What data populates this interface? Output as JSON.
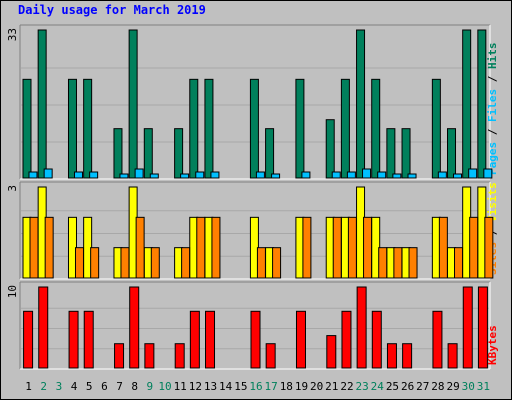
{
  "title": "Daily usage for March 2019",
  "colors": {
    "hits": "#00805c",
    "files": "#00c0ff",
    "pages": "#00c0ff",
    "visits": "#ffff00",
    "sites": "#ff8000",
    "kbytes": "#ff0000",
    "weekday_label": "#000000",
    "weekend_label": "#00805c"
  },
  "chart_data": [
    {
      "type": "bar",
      "title": "Daily usage for March 2019",
      "categories": [
        "1",
        "2",
        "3",
        "4",
        "5",
        "6",
        "7",
        "8",
        "9",
        "10",
        "11",
        "12",
        "13",
        "14",
        "15",
        "16",
        "17",
        "18",
        "19",
        "20",
        "21",
        "22",
        "23",
        "24",
        "25",
        "26",
        "27",
        "28",
        "29",
        "30",
        "31"
      ],
      "weekend_days": [
        "2",
        "3",
        "9",
        "10",
        "16",
        "17",
        "23",
        "24",
        "30",
        "31"
      ],
      "ymax_label": "33",
      "ylim": [
        0,
        33
      ],
      "legend": [
        {
          "text": "Pages",
          "color": "#00c0ff"
        },
        {
          "text": " / ",
          "color": "#000000"
        },
        {
          "text": "Files",
          "color": "#00c0ff"
        },
        {
          "text": " / ",
          "color": "#000000"
        },
        {
          "text": "Hits",
          "color": "#00805c"
        }
      ],
      "series": [
        {
          "name": "Hits",
          "color": "#00805c",
          "values": [
            22,
            33,
            0,
            22,
            22,
            0,
            11,
            33,
            11,
            0,
            11,
            22,
            22,
            0,
            0,
            22,
            11,
            0,
            22,
            0,
            13,
            22,
            33,
            22,
            11,
            11,
            0,
            22,
            11,
            33,
            33
          ]
        },
        {
          "name": "Files",
          "color": "#00c0ff",
          "values": [
            2,
            3,
            0,
            2,
            2,
            0,
            1,
            3,
            1,
            0,
            1,
            2,
            2,
            0,
            0,
            2,
            1,
            0,
            2,
            0,
            2,
            2,
            3,
            2,
            1,
            1,
            0,
            2,
            1,
            3,
            3
          ]
        }
      ]
    },
    {
      "type": "bar",
      "categories": [
        "1",
        "2",
        "3",
        "4",
        "5",
        "6",
        "7",
        "8",
        "9",
        "10",
        "11",
        "12",
        "13",
        "14",
        "15",
        "16",
        "17",
        "18",
        "19",
        "20",
        "21",
        "22",
        "23",
        "24",
        "25",
        "26",
        "27",
        "28",
        "29",
        "30",
        "31"
      ],
      "ymax_label": "3",
      "ylim": [
        0,
        3
      ],
      "legend": [
        {
          "text": "Sites",
          "color": "#ff8000"
        },
        {
          "text": " / ",
          "color": "#000000"
        },
        {
          "text": "Visits",
          "color": "#ffff00"
        }
      ],
      "series": [
        {
          "name": "Visits",
          "color": "#ffff00",
          "values": [
            2,
            3,
            0,
            2,
            2,
            0,
            1,
            3,
            1,
            0,
            1,
            2,
            2,
            0,
            0,
            2,
            1,
            0,
            2,
            0,
            2,
            2,
            3,
            2,
            1,
            1,
            0,
            2,
            1,
            3,
            3
          ]
        },
        {
          "name": "Sites",
          "color": "#ff8000",
          "values": [
            2,
            2,
            0,
            1,
            1,
            0,
            1,
            2,
            1,
            0,
            1,
            2,
            2,
            0,
            0,
            1,
            1,
            0,
            2,
            0,
            2,
            2,
            2,
            1,
            1,
            1,
            0,
            2,
            1,
            2,
            2
          ]
        }
      ]
    },
    {
      "type": "bar",
      "categories": [
        "1",
        "2",
        "3",
        "4",
        "5",
        "6",
        "7",
        "8",
        "9",
        "10",
        "11",
        "12",
        "13",
        "14",
        "15",
        "16",
        "17",
        "18",
        "19",
        "20",
        "21",
        "22",
        "23",
        "24",
        "25",
        "26",
        "27",
        "28",
        "29",
        "30",
        "31"
      ],
      "ymax_label": "10",
      "ylim": [
        0,
        10
      ],
      "legend": [
        {
          "text": "KBytes",
          "color": "#ff0000"
        }
      ],
      "series": [
        {
          "name": "KBytes",
          "color": "#ff0000",
          "values": [
            7,
            10,
            0,
            7,
            7,
            0,
            3,
            10,
            3,
            0,
            3,
            7,
            7,
            0,
            0,
            7,
            3,
            0,
            7,
            0,
            4,
            7,
            10,
            7,
            3,
            3,
            0,
            7,
            3,
            10,
            10
          ]
        }
      ]
    }
  ]
}
